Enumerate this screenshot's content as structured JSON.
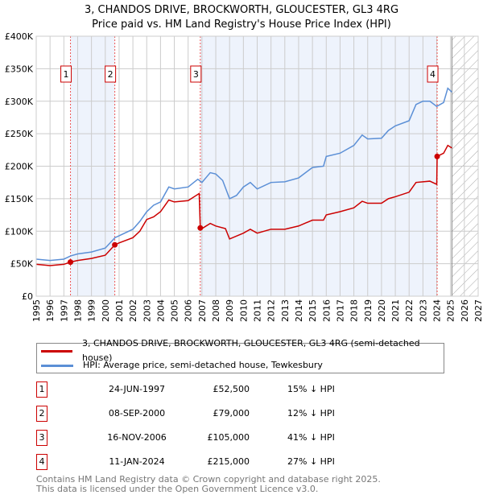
{
  "chart_data": {
    "type": "line",
    "title": "3, CHANDOS DRIVE, BROCKWORTH, GLOUCESTER, GL3 4RG",
    "subtitle": "Price paid vs. HM Land Registry's House Price Index (HPI)",
    "xlim": [
      1995,
      2027
    ],
    "ylim": [
      0,
      400000
    ],
    "x_ticks": [
      "1995",
      "1996",
      "1997",
      "1998",
      "1999",
      "2000",
      "2001",
      "2002",
      "2003",
      "2004",
      "2005",
      "2006",
      "2007",
      "2008",
      "2009",
      "2010",
      "2011",
      "2012",
      "2013",
      "2014",
      "2015",
      "2016",
      "2017",
      "2018",
      "2019",
      "2020",
      "2021",
      "2022",
      "2023",
      "2024",
      "2025",
      "2026",
      "2027"
    ],
    "y_ticks": [
      {
        "v": 0,
        "label": "£0"
      },
      {
        "v": 50000,
        "label": "£50K"
      },
      {
        "v": 100000,
        "label": "£100K"
      },
      {
        "v": 150000,
        "label": "£150K"
      },
      {
        "v": 200000,
        "label": "£200K"
      },
      {
        "v": 250000,
        "label": "£250K"
      },
      {
        "v": 300000,
        "label": "£300K"
      },
      {
        "v": 350000,
        "label": "£350K"
      },
      {
        "v": 400000,
        "label": "£400K"
      }
    ],
    "grid": true,
    "forecast_from": 2025.1,
    "series": [
      {
        "name": "3, CHANDOS DRIVE, BROCKWORTH, GLOUCESTER, GL3 4RG (semi-detached house)",
        "color": "#cc0000",
        "x": [
          1995,
          1996,
          1997,
          1997.48,
          1998,
          1999,
          2000,
          2000.69,
          2001,
          2002,
          2002.5,
          2003,
          2003.5,
          2004,
          2004.6,
          2005,
          2006,
          2006.8,
          2006.88,
          2007,
          2007.6,
          2008,
          2008.7,
          2009,
          2010,
          2010.5,
          2011,
          2012,
          2013,
          2014,
          2015,
          2015.8,
          2016,
          2017,
          2018,
          2018.6,
          2019,
          2020,
          2020.5,
          2021,
          2022,
          2022.5,
          2023,
          2023.5,
          2024,
          2024.03,
          2024.5,
          2024.8,
          2025.1
        ],
        "y": [
          49000,
          47000,
          49000,
          52500,
          55000,
          58000,
          63000,
          79000,
          82000,
          90000,
          100000,
          118000,
          122000,
          130000,
          148000,
          145000,
          147000,
          158000,
          105000,
          104000,
          112000,
          108000,
          104000,
          88000,
          97000,
          103000,
          97000,
          103000,
          103000,
          108000,
          117000,
          117000,
          125000,
          130000,
          136000,
          146000,
          143000,
          143000,
          150000,
          153000,
          160000,
          175000,
          176000,
          177000,
          172000,
          215000,
          220000,
          232000,
          228000
        ]
      },
      {
        "name": "HPI: Average price, semi-detached house, Tewkesbury",
        "color": "#5b8fd6",
        "x": [
          1995,
          1996,
          1997,
          1997.5,
          1998,
          1999,
          2000,
          2000.7,
          2001,
          2002,
          2002.5,
          2003,
          2003.5,
          2004,
          2004.6,
          2005,
          2006,
          2006.7,
          2007,
          2007.6,
          2008,
          2008.5,
          2009,
          2009.5,
          2010,
          2010.5,
          2011,
          2012,
          2013,
          2014,
          2015,
          2015.8,
          2016,
          2017,
          2018,
          2018.6,
          2019,
          2020,
          2020.5,
          2021,
          2022,
          2022.5,
          2023,
          2023.5,
          2024,
          2024.5,
          2024.8,
          2025.1
        ],
        "y": [
          57000,
          55000,
          57000,
          62000,
          65000,
          68000,
          74000,
          90000,
          93000,
          103000,
          115000,
          130000,
          140000,
          145000,
          168000,
          165000,
          168000,
          180000,
          175000,
          190000,
          188000,
          178000,
          150000,
          155000,
          168000,
          175000,
          165000,
          175000,
          176000,
          182000,
          198000,
          200000,
          215000,
          220000,
          232000,
          248000,
          242000,
          243000,
          255000,
          262000,
          270000,
          295000,
          300000,
          300000,
          292000,
          298000,
          320000,
          314000
        ]
      }
    ],
    "sales": [
      {
        "n": "1",
        "date": "24-JUN-1997",
        "x": 1997.48,
        "price": "£52,500",
        "value": 52500,
        "hpi": "15% ↓ HPI"
      },
      {
        "n": "2",
        "date": "08-SEP-2000",
        "x": 2000.69,
        "price": "£79,000",
        "value": 79000,
        "hpi": "12% ↓ HPI"
      },
      {
        "n": "3",
        "date": "16-NOV-2006",
        "x": 2006.88,
        "price": "£105,000",
        "value": 105000,
        "hpi": "41% ↓ HPI"
      },
      {
        "n": "4",
        "date": "11-JAN-2024",
        "x": 2024.03,
        "price": "£215,000",
        "value": 215000,
        "hpi": "27% ↓ HPI"
      }
    ]
  },
  "legend": {
    "property": "3, CHANDOS DRIVE, BROCKWORTH, GLOUCESTER, GL3 4RG (semi-detached house)",
    "hpi": "HPI: Average price, semi-detached house, Tewkesbury"
  },
  "footer": {
    "line1": "Contains HM Land Registry data © Crown copyright and database right 2025.",
    "line2": "This data is licensed under the Open Government Licence v3.0."
  }
}
